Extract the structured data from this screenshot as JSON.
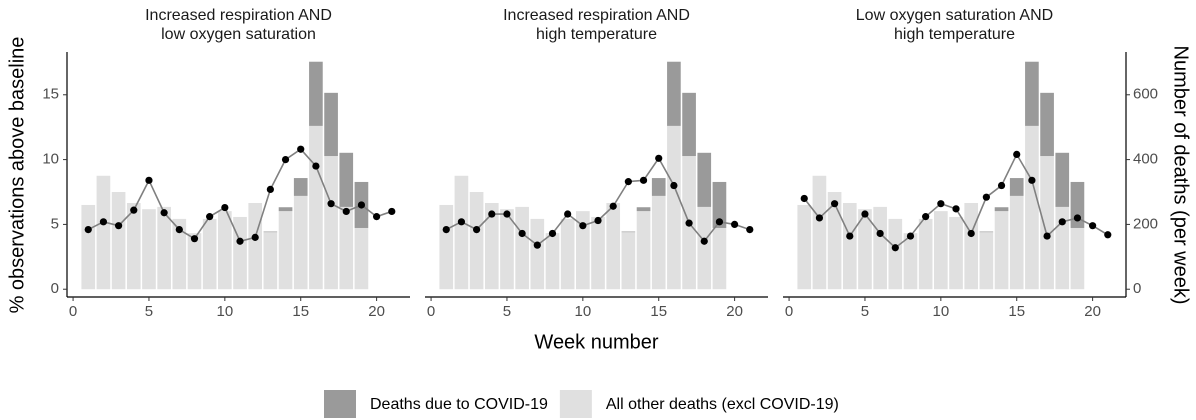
{
  "chart_data": [
    {
      "type": "combo",
      "title": "Increased respiration AND\nlow oxygen saturation",
      "ylabel": "% observations above baseline",
      "x": [
        1,
        2,
        3,
        4,
        5,
        6,
        7,
        8,
        9,
        10,
        11,
        12,
        13,
        14,
        15,
        16,
        17,
        18,
        19,
        20,
        21
      ],
      "values": [
        4.6,
        5.2,
        4.9,
        6.1,
        8.4,
        5.9,
        4.6,
        3.9,
        5.6,
        6.3,
        3.7,
        4.0,
        7.7,
        10.0,
        10.8,
        9.5,
        6.6,
        6.0,
        6.5,
        5.6,
        6.0
      ],
      "line_color": "#808080",
      "point_color": "#000000",
      "series": [
        {
          "name": "All other deaths (excl COVID-19)",
          "color": "#e0e0e0",
          "axis": "y2",
          "values": [
            260,
            350,
            300,
            266,
            247,
            254,
            217,
            173,
            217,
            241,
            223,
            266,
            176,
            241,
            288,
            504,
            411,
            254,
            189,
            null,
            null
          ]
        },
        {
          "name": "Deaths due to COVID-19",
          "color": "#9a9a9a",
          "axis": "y2",
          "values": [
            0,
            0,
            0,
            0,
            0,
            0,
            0,
            0,
            0,
            0,
            0,
            0,
            2,
            12,
            55,
            198,
            195,
            167,
            142,
            null,
            null
          ]
        }
      ],
      "xlim": [
        -0.4,
        22.2
      ],
      "xticks": [
        0,
        5,
        10,
        15,
        20
      ],
      "ylim": [
        -0.6,
        18.3
      ],
      "yticks": [
        0,
        5,
        10,
        15
      ],
      "y2lim": [
        -24,
        732
      ],
      "legend": "bottom"
    },
    {
      "type": "combo",
      "title": "Increased respiration AND\nhigh temperature",
      "xlabel": "Week number",
      "x": [
        1,
        2,
        3,
        4,
        5,
        6,
        7,
        8,
        9,
        10,
        11,
        12,
        13,
        14,
        15,
        16,
        17,
        18,
        19,
        20,
        21
      ],
      "values": [
        4.6,
        5.2,
        4.6,
        5.8,
        5.8,
        4.3,
        3.4,
        4.3,
        5.8,
        4.9,
        5.3,
        6.4,
        8.3,
        8.4,
        10.1,
        8.0,
        5.1,
        3.7,
        5.2,
        5.0,
        4.6
      ],
      "line_color": "#808080",
      "point_color": "#000000",
      "series": [
        {
          "color": "#e0e0e0",
          "axis": "y2",
          "values": [
            260,
            350,
            300,
            266,
            247,
            254,
            217,
            173,
            217,
            241,
            223,
            266,
            176,
            241,
            288,
            504,
            411,
            254,
            189,
            null,
            null
          ]
        },
        {
          "color": "#9a9a9a",
          "axis": "y2",
          "values": [
            0,
            0,
            0,
            0,
            0,
            0,
            0,
            0,
            0,
            0,
            0,
            0,
            2,
            12,
            55,
            198,
            195,
            167,
            142,
            null,
            null
          ]
        }
      ],
      "xlim": [
        -0.4,
        22.2
      ],
      "xticks": [
        0,
        5,
        10,
        15,
        20
      ],
      "ylim": [
        -0.6,
        18.3
      ],
      "y2lim": [
        -24,
        732
      ]
    },
    {
      "type": "combo",
      "title": "Low oxygen saturation AND\nhigh temperature",
      "y2label": "Number of deaths (per week)",
      "x": [
        1,
        2,
        3,
        4,
        5,
        6,
        7,
        8,
        9,
        10,
        11,
        12,
        13,
        14,
        15,
        16,
        17,
        18,
        19,
        20,
        21
      ],
      "values": [
        7.0,
        5.5,
        6.6,
        4.1,
        5.8,
        4.3,
        3.2,
        4.1,
        5.6,
        6.6,
        6.2,
        4.3,
        7.1,
        8.0,
        10.4,
        8.4,
        4.1,
        5.2,
        5.5,
        4.9,
        4.2
      ],
      "line_color": "#808080",
      "point_color": "#000000",
      "series": [
        {
          "color": "#e0e0e0",
          "axis": "y2",
          "values": [
            260,
            350,
            300,
            266,
            247,
            254,
            217,
            173,
            217,
            241,
            223,
            266,
            176,
            241,
            288,
            504,
            411,
            254,
            189,
            null,
            null
          ]
        },
        {
          "color": "#9a9a9a",
          "axis": "y2",
          "values": [
            0,
            0,
            0,
            0,
            0,
            0,
            0,
            0,
            0,
            0,
            0,
            0,
            2,
            12,
            55,
            198,
            195,
            167,
            142,
            null,
            null
          ]
        }
      ],
      "xlim": [
        -0.4,
        22.2
      ],
      "xticks": [
        0,
        5,
        10,
        15,
        20
      ],
      "ylim": [
        -0.6,
        18.3
      ],
      "y2lim": [
        -24,
        732
      ],
      "y2ticks": [
        0,
        200,
        400,
        600
      ]
    }
  ]
}
